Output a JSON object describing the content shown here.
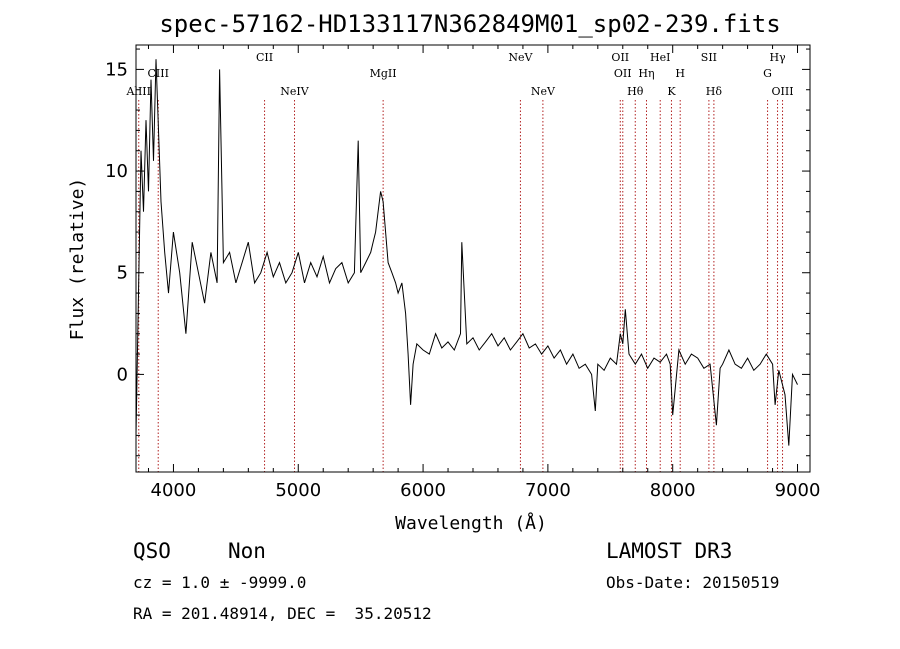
{
  "chart_data": {
    "type": "line",
    "title": "spec-57162-HD133117N362849M01_sp02-239.fits",
    "xlabel": "Wavelength (Å)",
    "ylabel": "Flux (relative)",
    "xlim": [
      3700,
      9100
    ],
    "ylim": [
      -4.8,
      16.2
    ],
    "x_ticks": [
      4000,
      5000,
      6000,
      7000,
      8000,
      9000
    ],
    "y_ticks": [
      0,
      5,
      10,
      15
    ],
    "spectrum": {
      "x": [
        3700,
        3720,
        3740,
        3760,
        3780,
        3800,
        3820,
        3840,
        3860,
        3880,
        3900,
        3930,
        3960,
        4000,
        4050,
        4100,
        4150,
        4200,
        4250,
        4300,
        4350,
        4370,
        4400,
        4450,
        4500,
        4550,
        4600,
        4650,
        4700,
        4750,
        4800,
        4850,
        4900,
        4950,
        5000,
        5050,
        5100,
        5150,
        5200,
        5250,
        5300,
        5350,
        5400,
        5450,
        5480,
        5500,
        5540,
        5580,
        5600,
        5620,
        5640,
        5660,
        5680,
        5700,
        5720,
        5750,
        5780,
        5800,
        5830,
        5860,
        5880,
        5900,
        5920,
        5950,
        6000,
        6050,
        6100,
        6150,
        6200,
        6250,
        6300,
        6310,
        6350,
        6400,
        6450,
        6500,
        6550,
        6600,
        6650,
        6700,
        6750,
        6800,
        6850,
        6900,
        6950,
        7000,
        7050,
        7100,
        7150,
        7200,
        7250,
        7300,
        7350,
        7380,
        7400,
        7450,
        7500,
        7550,
        7580,
        7600,
        7620,
        7650,
        7700,
        7750,
        7800,
        7850,
        7900,
        7950,
        7980,
        8000,
        8050,
        8100,
        8150,
        8200,
        8250,
        8300,
        8350,
        8380,
        8400,
        8450,
        8500,
        8550,
        8600,
        8650,
        8700,
        8750,
        8800,
        8820,
        8850,
        8900,
        8930,
        8960,
        9000
      ],
      "y": [
        -3.0,
        4.0,
        11.0,
        8.0,
        12.5,
        9.0,
        14.5,
        10.5,
        15.5,
        12.0,
        8.5,
        6.0,
        4.0,
        7.0,
        5.0,
        2.0,
        6.5,
        5.0,
        3.5,
        6.0,
        4.5,
        15.0,
        5.5,
        6.0,
        4.5,
        5.5,
        6.5,
        4.5,
        5.0,
        6.0,
        4.8,
        5.5,
        4.5,
        5.0,
        6.0,
        4.5,
        5.5,
        4.8,
        5.8,
        4.5,
        5.2,
        5.5,
        4.5,
        5.0,
        11.5,
        5.0,
        5.5,
        6.0,
        6.5,
        7.0,
        8.0,
        9.0,
        8.5,
        7.0,
        5.5,
        5.0,
        4.5,
        4.0,
        4.5,
        3.0,
        1.0,
        -1.5,
        0.5,
        1.5,
        1.2,
        1.0,
        2.0,
        1.3,
        1.6,
        1.2,
        2.0,
        6.5,
        1.5,
        1.8,
        1.2,
        1.6,
        2.0,
        1.4,
        1.8,
        1.2,
        1.6,
        2.0,
        1.3,
        1.5,
        1.0,
        1.4,
        0.8,
        1.2,
        0.5,
        1.0,
        0.3,
        0.5,
        0.0,
        -1.8,
        0.5,
        0.2,
        0.8,
        0.5,
        2.0,
        1.5,
        3.2,
        1.0,
        0.5,
        1.0,
        0.3,
        0.8,
        0.6,
        1.0,
        0.5,
        -2.0,
        1.2,
        0.5,
        1.0,
        0.8,
        0.3,
        0.5,
        -2.5,
        0.3,
        0.5,
        1.2,
        0.5,
        0.3,
        0.8,
        0.2,
        0.5,
        1.0,
        0.5,
        -1.5,
        0.2,
        -1.0,
        -3.5,
        0.0,
        -0.5
      ]
    },
    "emission_lines": [
      {
        "label": "AlIII",
        "x": 3722,
        "row": 3
      },
      {
        "label": "CIII",
        "x": 3878,
        "row": 2
      },
      {
        "label": "CII",
        "x": 4730,
        "row": 1
      },
      {
        "label": "NeIV",
        "x": 4970,
        "row": 3
      },
      {
        "label": "MgII",
        "x": 5680,
        "row": 2
      },
      {
        "label": "NeV",
        "x": 6780,
        "row": 1
      },
      {
        "label": "NeV",
        "x": 6960,
        "row": 3
      },
      {
        "label": "OII",
        "x": 7580,
        "row": 1
      },
      {
        "label": "OII",
        "x": 7600,
        "row": 2
      },
      {
        "label": "Hθ",
        "x": 7700,
        "row": 3
      },
      {
        "label": "Hη",
        "x": 7790,
        "row": 2
      },
      {
        "label": "HeI",
        "x": 7900,
        "row": 1
      },
      {
        "label": "K",
        "x": 7990,
        "row": 3
      },
      {
        "label": "H",
        "x": 8060,
        "row": 2
      },
      {
        "label": "Hδ",
        "x": 8330,
        "row": 3
      },
      {
        "label": "SII",
        "x": 8290,
        "row": 1
      },
      {
        "label": "G",
        "x": 8760,
        "row": 2
      },
      {
        "label": "Hγ",
        "x": 8840,
        "row": 1
      },
      {
        "label": "OIII",
        "x": 8880,
        "row": 3
      }
    ],
    "line_color": "#b22222"
  },
  "info": {
    "class": "QSO",
    "subclass": "Non",
    "cz": "cz = 1.0 ± -9999.0",
    "radec": "RA = 201.48914, DEC =  35.20512",
    "survey": "LAMOST DR3",
    "obs_date": "Obs-Date: 20150519"
  }
}
